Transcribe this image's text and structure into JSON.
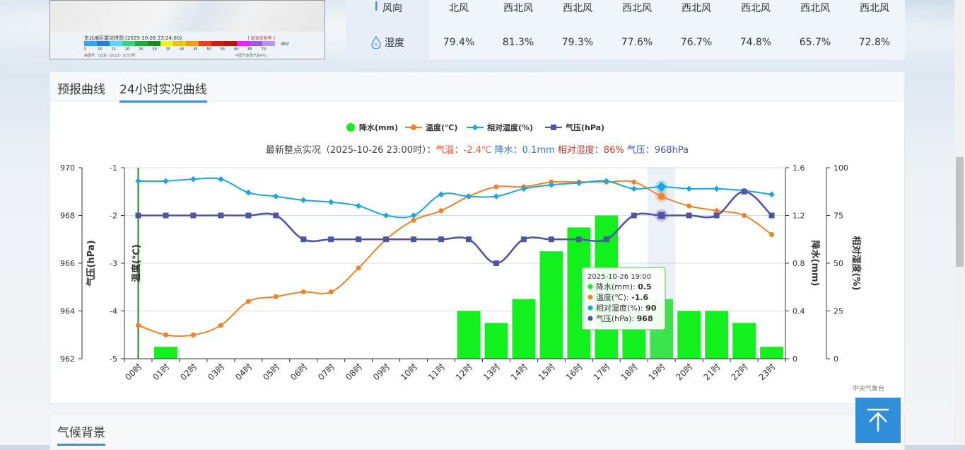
{
  "radar_map": {
    "title": "东北地区雷达拼图 [2025-10-26 23:24:00]",
    "tag": "[ 组合反射率 ]",
    "unit": "dBZ",
    "scale": [
      5,
      10,
      15,
      20,
      25,
      30,
      35,
      40,
      45,
      50,
      55,
      60,
      65,
      70
    ],
    "scale_colors": [
      "#3aa0ff",
      "#2b7fd4",
      "#5fd4ff",
      "#3fd47a",
      "#2aa640",
      "#188a2a",
      "#f2f227",
      "#e6c21f",
      "#f29a1f",
      "#f23d1f",
      "#d11b1b",
      "#b81313",
      "#f01ef0",
      "#9a5adf",
      "#b49ae6"
    ],
    "footer": "审图号：GS京（2022）0372号",
    "footer2": "中国气象局气象中心"
  },
  "weather_table": {
    "wind_label": "风向",
    "wind_values": [
      "北风",
      "西北风",
      "西北风",
      "西北风",
      "西北风",
      "西北风",
      "西北风",
      "西北风"
    ],
    "humidity_label": "湿度",
    "humidity_values": [
      "79.4%",
      "81.3%",
      "79.3%",
      "77.6%",
      "76.7%",
      "74.8%",
      "65.7%",
      "72.8%"
    ]
  },
  "tabs": {
    "forecast": "预报曲线",
    "observed": "24小时实况曲线"
  },
  "legend": {
    "rain": "降水(mm)",
    "temp": "温度(℃)",
    "humidity": "相对湿度(%)",
    "pressure": "气压(hPa)"
  },
  "subtitle": {
    "prefix": "最新整点实况（2025-10-26 23:00时）：",
    "temp": "气温：-2.4℃",
    "rain": "降水：0.1mm",
    "humidity": "相对湿度：86%",
    "pressure": "气压：968hPa"
  },
  "colors": {
    "rain": "#12f01e",
    "temp": "#f0832a",
    "humidity": "#1aa6e0",
    "pressure": "#4f55a6",
    "subtitle_temp": "#e85c3a",
    "subtitle_rain": "#2a78c4",
    "subtitle_humidity": "#c0392b",
    "subtitle_pressure": "#4f55a6",
    "accent": "#2f8fd8"
  },
  "chart_data": {
    "type": "line",
    "x": [
      "00时",
      "01时",
      "02时",
      "03时",
      "04时",
      "05时",
      "06时",
      "07时",
      "08时",
      "09时",
      "10时",
      "11时",
      "12时",
      "13时",
      "14时",
      "15时",
      "16时",
      "17时",
      "18时",
      "19时",
      "20时",
      "21时",
      "22时",
      "23时"
    ],
    "axes": {
      "pressure": {
        "label": "气压(hPa)",
        "ticks": [
          962,
          964,
          966,
          968,
          970
        ],
        "range": [
          962,
          970
        ]
      },
      "temp": {
        "label": "温度(℃)",
        "ticks": [
          -5,
          -4,
          -3,
          -2,
          -1
        ],
        "range": [
          -5,
          -1
        ]
      },
      "rain": {
        "label": "降水(mm)",
        "ticks": [
          0,
          0.4,
          0.8,
          1.2,
          1.6
        ],
        "range": [
          0,
          1.6
        ]
      },
      "humidity": {
        "label": "相对湿度(%)",
        "ticks": [
          0,
          25,
          50,
          75,
          100
        ],
        "range": [
          0,
          100
        ]
      }
    },
    "series": [
      {
        "name": "降水(mm)",
        "type": "bar",
        "axis": "rain",
        "values": [
          0,
          0.1,
          0,
          0,
          0,
          0,
          0,
          0,
          0,
          0,
          0,
          0,
          0.4,
          0.3,
          0.5,
          0.9,
          1.1,
          1.2,
          0.4,
          0.5,
          0.4,
          0.4,
          0.3,
          0.1
        ]
      },
      {
        "name": "温度(℃)",
        "type": "line",
        "axis": "temp",
        "values": [
          -4.3,
          -4.5,
          -4.5,
          -4.3,
          -3.8,
          -3.7,
          -3.6,
          -3.6,
          -3.1,
          -2.5,
          -2.1,
          -1.9,
          -1.6,
          -1.4,
          -1.4,
          -1.3,
          -1.3,
          -1.3,
          -1.3,
          -1.6,
          -1.8,
          -1.9,
          -2.0,
          -2.4
        ]
      },
      {
        "name": "相对湿度(%)",
        "type": "line",
        "axis": "humidity",
        "values": [
          93,
          93,
          94,
          94,
          87,
          85,
          83,
          82,
          80,
          75,
          75,
          86,
          85,
          85,
          89,
          91,
          92,
          93,
          89,
          90,
          89,
          89,
          88,
          86
        ]
      },
      {
        "name": "气压(hPa)",
        "type": "line",
        "axis": "pressure",
        "values": [
          968,
          968,
          968,
          968,
          968,
          968,
          967,
          967,
          967,
          967,
          967,
          967,
          967,
          966,
          967,
          967,
          967,
          967,
          968,
          968,
          968,
          968,
          969,
          968
        ]
      }
    ],
    "tooltip": {
      "title": "2025-10-26 19:00",
      "rows": [
        {
          "label": "降水(mm): ",
          "value": "0.5"
        },
        {
          "label": "温度(℃): ",
          "value": "-1.6"
        },
        {
          "label": "相对湿度(%): ",
          "value": "90"
        },
        {
          "label": "气压(hPa): ",
          "value": "968"
        }
      ],
      "index": 19
    },
    "credit": "中央气象台"
  },
  "section2": {
    "title": "气候背景"
  }
}
